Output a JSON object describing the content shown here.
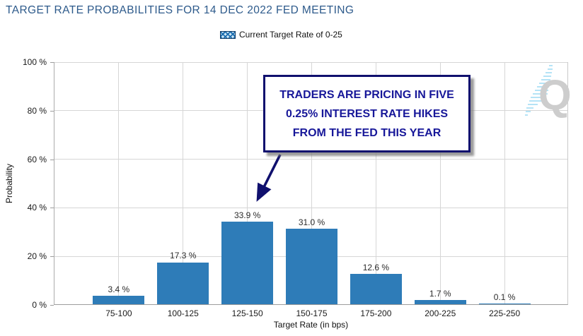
{
  "chart_data": {
    "type": "bar",
    "title": "TARGET RATE PROBABILITIES FOR 14 DEC 2022 FED MEETING",
    "categories": [
      "75-100",
      "100-125",
      "125-150",
      "150-175",
      "175-200",
      "200-225",
      "225-250"
    ],
    "values": [
      3.4,
      17.3,
      33.9,
      31.0,
      12.6,
      1.7,
      0.1
    ],
    "value_labels": [
      "3.4 %",
      "17.3 %",
      "33.9 %",
      "31.0 %",
      "12.6 %",
      "1.7 %",
      "0.1 %"
    ],
    "xlabel": "Target Rate (in bps)",
    "ylabel": "Probability",
    "ylim": [
      0,
      100
    ],
    "yticks": [
      0,
      20,
      40,
      60,
      80,
      100
    ],
    "ytick_labels": [
      "0 %",
      "20 %",
      "40 %",
      "60 %",
      "80 %",
      "100 %"
    ],
    "grid": true,
    "legend": [
      "Current Target Rate of 0-25"
    ],
    "legend_position": "top-center",
    "bar_color": "#2e7cb8",
    "annotation": {
      "lines": [
        "TRADERS ARE PRICING IN FIVE",
        "0.25% INTEREST RATE HIKES",
        "FROM THE FED THIS YEAR"
      ],
      "arrow_target_category": "125-150"
    }
  },
  "watermark": {
    "letter": "Q"
  },
  "colors": {
    "title": "#2d5a8b",
    "bar": "#2e7cb8",
    "annotation_navy": "#10106e",
    "annotation_text": "#171799",
    "gridline": "#d6d6d6",
    "axis": "#9c9c9c",
    "watermark_gray": "#cdcdcd",
    "watermark_blue": "#b5e3f6"
  }
}
